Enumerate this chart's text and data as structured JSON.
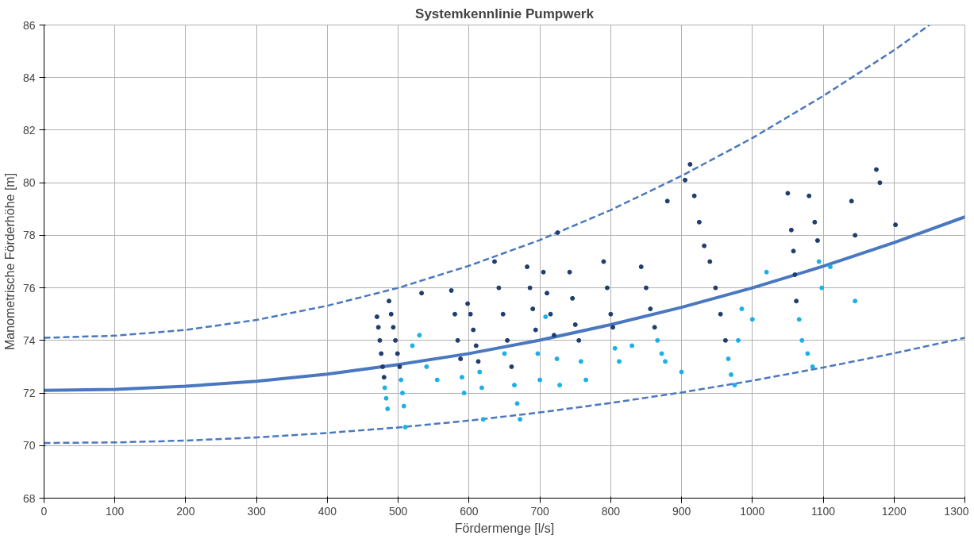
{
  "chart_data": {
    "type": "scatter",
    "title": "Systemkennlinie Pumpwerk",
    "xlabel": "Fördermenge [l/s]",
    "ylabel": "Manometrische Förderhöhe [m]",
    "xlim": [
      0,
      1300
    ],
    "ylim": [
      68,
      86
    ],
    "xticks": [
      0,
      100,
      200,
      300,
      400,
      500,
      600,
      700,
      800,
      900,
      1000,
      1100,
      1200,
      1300
    ],
    "yticks": [
      68,
      70,
      72,
      74,
      76,
      78,
      80,
      82,
      84,
      86
    ],
    "grid": true,
    "marker": "circle",
    "series": [
      {
        "type": "line",
        "marker": "none",
        "line_style": "solid",
        "color": "#4a78c0",
        "x": [
          0,
          100,
          200,
          300,
          400,
          500,
          600,
          700,
          800,
          900,
          1000,
          1100,
          1200,
          1300
        ],
        "values": [
          72.1,
          72.14,
          72.26,
          72.45,
          72.72,
          73.08,
          73.5,
          74.01,
          74.6,
          75.26,
          76.0,
          76.82,
          77.72,
          78.7
        ]
      },
      {
        "type": "line",
        "marker": "none",
        "line_style": "dashed",
        "color": "#4a78c0",
        "x": [
          0,
          100,
          200,
          300,
          400,
          500,
          600,
          700,
          800,
          900,
          1000,
          1100,
          1200,
          1250
        ],
        "values": [
          74.1,
          74.18,
          74.4,
          74.78,
          75.32,
          76.0,
          76.84,
          77.82,
          78.96,
          80.26,
          81.7,
          83.3,
          85.04,
          86.0
        ]
      },
      {
        "type": "line",
        "marker": "none",
        "line_style": "dashed",
        "color": "#4a78c0",
        "x": [
          0,
          100,
          200,
          300,
          400,
          500,
          600,
          700,
          800,
          900,
          1000,
          1100,
          1200,
          1300
        ],
        "values": [
          70.1,
          70.12,
          70.19,
          70.31,
          70.48,
          70.69,
          70.95,
          71.26,
          71.62,
          72.02,
          72.47,
          72.97,
          73.51,
          74.1
        ]
      },
      {
        "color": "#1f3e6e",
        "x": [
          470,
          472,
          474,
          476,
          478,
          480,
          487,
          490,
          493,
          496,
          499,
          502,
          575,
          580,
          584,
          588,
          598,
          602,
          606,
          610,
          613,
          636,
          642,
          648,
          654,
          660,
          682,
          686,
          690,
          694,
          705,
          710,
          715,
          720,
          742,
          746,
          750,
          755,
          790,
          795,
          800,
          803,
          843,
          850,
          856,
          862,
          912,
          918,
          925,
          932,
          940,
          948,
          955,
          962,
          1050,
          1055,
          1058,
          1060,
          1062,
          1080,
          1088,
          1092,
          1175,
          1180,
          533,
          880,
          905,
          1145,
          1202,
          1140,
          725
        ],
        "values": [
          74.9,
          74.5,
          74.0,
          73.5,
          73.0,
          72.6,
          75.5,
          75.0,
          74.5,
          74.0,
          73.5,
          73.0,
          75.9,
          75.0,
          74.0,
          73.3,
          75.4,
          75.0,
          74.4,
          73.8,
          73.2,
          77.0,
          76.0,
          75.0,
          74.0,
          73.0,
          76.8,
          76.0,
          75.2,
          74.4,
          76.6,
          75.8,
          75.0,
          74.2,
          76.6,
          75.6,
          74.6,
          74.0,
          77.0,
          76.0,
          75.0,
          74.5,
          76.8,
          76.0,
          75.2,
          74.5,
          80.7,
          79.5,
          78.5,
          77.6,
          77.0,
          76.0,
          75.0,
          74.0,
          79.6,
          78.2,
          77.4,
          76.5,
          75.5,
          79.5,
          78.5,
          77.8,
          80.5,
          80.0,
          75.8,
          79.3,
          80.1,
          78.0,
          78.4,
          79.3,
          78.1
        ]
      },
      {
        "color": "#1ab0e8",
        "x": [
          481,
          483,
          485,
          504,
          506,
          508,
          510,
          590,
          593,
          615,
          618,
          664,
          668,
          672,
          697,
          700,
          724,
          728,
          758,
          765,
          806,
          812,
          866,
          872,
          877,
          966,
          970,
          975,
          985,
          980,
          1066,
          1070,
          1078,
          1085,
          1094,
          1098,
          520,
          530,
          540,
          555,
          620,
          650,
          708,
          830,
          900,
          1000,
          1145,
          1110,
          1020
        ],
        "values": [
          72.2,
          71.8,
          71.4,
          72.5,
          72.0,
          71.5,
          70.7,
          72.6,
          72.0,
          72.8,
          72.2,
          72.3,
          71.6,
          71.0,
          73.5,
          72.5,
          73.3,
          72.3,
          73.2,
          72.5,
          73.7,
          73.2,
          74.0,
          73.5,
          73.2,
          73.3,
          72.7,
          72.3,
          75.2,
          74.0,
          74.8,
          74.0,
          73.5,
          73.0,
          77.0,
          76.0,
          73.8,
          74.2,
          73.0,
          72.5,
          71.0,
          73.5,
          74.9,
          73.8,
          72.8,
          74.8,
          75.5,
          76.8,
          76.6
        ]
      }
    ]
  }
}
